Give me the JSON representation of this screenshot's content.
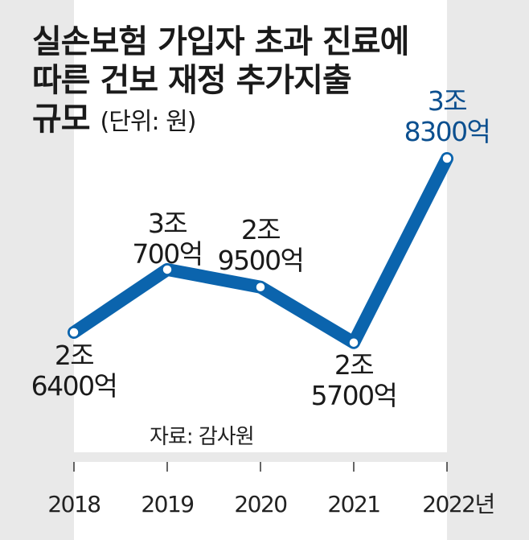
{
  "title_line1": "실손보험 가입자 초과 진료에",
  "title_line2": "따른 건보 재정 추가지출",
  "title_line3": "규모",
  "unit": "(단위: 원)",
  "source": "자료: 감사원",
  "x_unit": "년",
  "colors": {
    "line": "#0b64ad",
    "highlight": "#0b4f8f",
    "text": "#1a1a1a",
    "background": "#e9e9e9",
    "plot": "#ffffff"
  },
  "chart_data": {
    "type": "line",
    "title": "실손보험 가입자 초과 진료에 따른 건보 재정 추가지출 규모",
    "unit": "(단위: 원)",
    "categories": [
      "2018",
      "2019",
      "2020",
      "2021",
      "2022"
    ],
    "values": [
      26400,
      30700,
      29500,
      25700,
      38300
    ],
    "value_unit": "억 원",
    "data_labels": [
      {
        "line1": "2조",
        "line2": "6400억"
      },
      {
        "line1": "3조",
        "line2": "700억"
      },
      {
        "line1": "2조",
        "line2": "9500억"
      },
      {
        "line1": "2조",
        "line2": "5700억"
      },
      {
        "line1": "3조",
        "line2": "8300억"
      }
    ],
    "highlight_index": 4,
    "grid": false,
    "legend": "none"
  }
}
